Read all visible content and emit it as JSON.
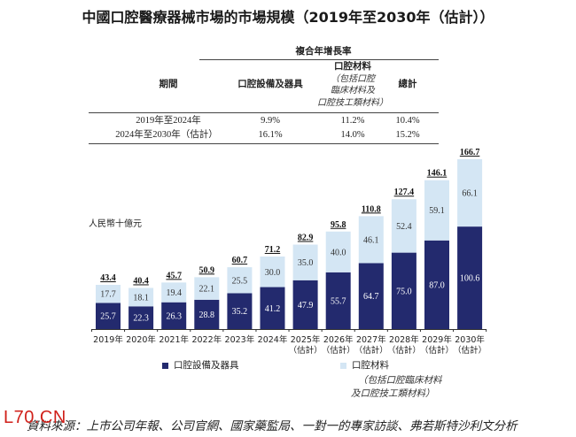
{
  "title": "中國口腔醫療器械市場的市場規模（2019年至2030年（估計））",
  "table": {
    "group_header": "複合年增長率",
    "columns": {
      "period": "期間",
      "equipment": "口腔設備及器具",
      "materials": "口腔材料",
      "materials_note": [
        "（包括口腔",
        "臨床材料及",
        "口腔技工類材料）"
      ],
      "total": "總計"
    },
    "rows": [
      {
        "period": "2019年至2024年",
        "equipment": "9.9%",
        "materials": "11.2%",
        "total": "10.4%"
      },
      {
        "period": "2024年至2030年（估計）",
        "equipment": "16.1%",
        "materials": "14.0%",
        "total": "15.2%"
      }
    ]
  },
  "chart_data": {
    "type": "bar",
    "stacked": true,
    "ylabel": "人民幣十億元",
    "categories": [
      "2019年",
      "2020年",
      "2021年",
      "2022年",
      "2023年",
      "2024年",
      "2025年（估計）",
      "2026年（估計）",
      "2027年（估計）",
      "2028年（估計）",
      "2029年（估計）",
      "2030年（估計）"
    ],
    "series": [
      {
        "name": "口腔設備及器具",
        "color": "#232a6e",
        "values": [
          25.7,
          22.3,
          26.3,
          28.8,
          35.2,
          41.2,
          47.9,
          55.7,
          64.7,
          75.0,
          87.0,
          100.6
        ]
      },
      {
        "name": "口腔材料",
        "color": "#d4e6f4",
        "values": [
          17.7,
          18.1,
          19.4,
          22.1,
          25.5,
          30.0,
          35.0,
          40.0,
          46.1,
          52.4,
          59.1,
          66.1
        ]
      }
    ],
    "totals": [
      43.4,
      40.4,
      45.7,
      50.9,
      60.7,
      71.2,
      82.9,
      95.8,
      110.8,
      127.4,
      146.1,
      166.7
    ],
    "legend_note": [
      "（包括口腔臨床材料",
      "及口腔技工類材料）"
    ],
    "legend_position": "bottom"
  },
  "source": "資料來源：上市公司年報、公司官網、國家藥監局、一對一的專家訪談、弗若斯特沙利文分析",
  "watermark": "L70.CN"
}
